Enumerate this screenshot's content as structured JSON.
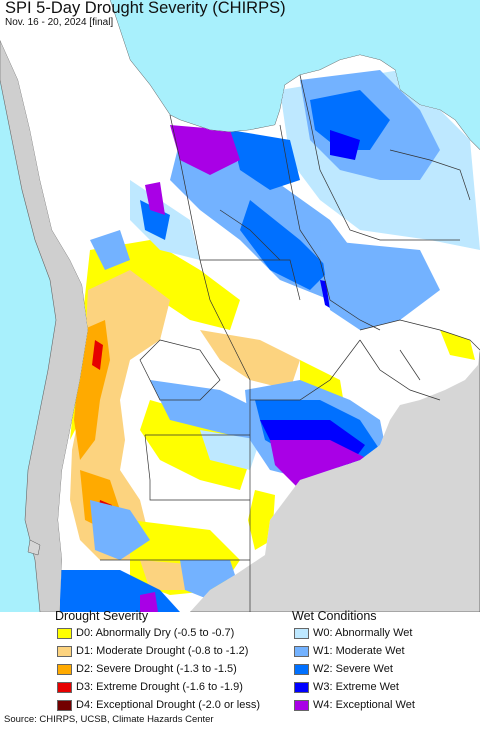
{
  "title": "SPI 5-Day Drought Severity (CHIRPS)",
  "subtitle": "Nov. 16 - 20, 2024 [final]",
  "colors": {
    "ocean": "#a8f0fc",
    "land_background": "#d6d6d6",
    "normal": "#ffffff",
    "borders": "#333333"
  },
  "legend": {
    "drought": {
      "heading": "Drought Severity",
      "items": [
        {
          "label": "D0: Abnormally Dry (-0.5 to -0.7)",
          "color": "#ffff00"
        },
        {
          "label": "D1: Moderate Drought (-0.8 to -1.2)",
          "color": "#fcd37f"
        },
        {
          "label": "D2: Severe Drought (-1.3 to -1.5)",
          "color": "#ffaa00"
        },
        {
          "label": "D3: Extreme Drought (-1.6 to -1.9)",
          "color": "#e60000"
        },
        {
          "label": "D4: Exceptional Drought (-2.0 or less)",
          "color": "#730000"
        }
      ]
    },
    "wet": {
      "heading": "Wet Conditions",
      "items": [
        {
          "label": "W0: Abnormally Wet",
          "color": "#bee8ff"
        },
        {
          "label": "W1: Moderate Wet",
          "color": "#73b2ff"
        },
        {
          "label": "W2: Severe Wet",
          "color": "#0070ff"
        },
        {
          "label": "W3: Extreme Wet",
          "color": "#0000ff"
        },
        {
          "label": "W4: Exceptional Wet",
          "color": "#a900e6"
        }
      ]
    }
  },
  "source": "Source: CHIRPS, UCSB, Climate Hazards Center"
}
